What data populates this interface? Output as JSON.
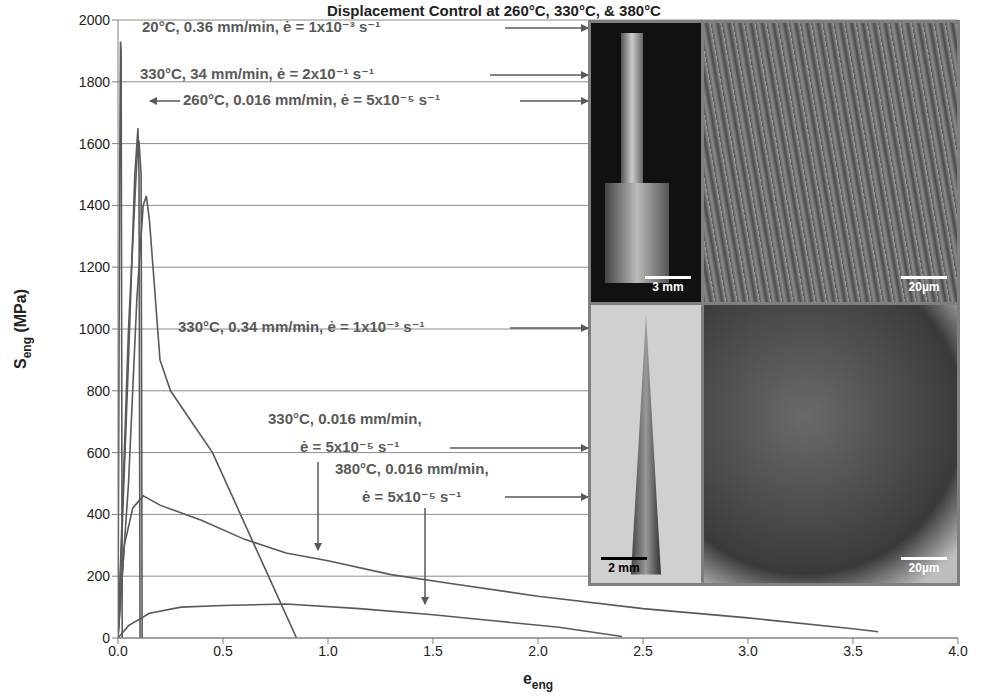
{
  "chart_data": {
    "type": "line",
    "title": "Displacement Control at 260°C, 330°C, & 380°C",
    "x_label": "eeng",
    "y_label": "Seng (MPa)",
    "xlim": [
      0,
      4
    ],
    "ylim": [
      0,
      2000
    ],
    "xticks": [
      {
        "value": 0,
        "label": "0.0"
      },
      {
        "value": 0.5,
        "label": "0.5"
      },
      {
        "value": 1,
        "label": "1.0"
      },
      {
        "value": 1.5,
        "label": "1.5"
      },
      {
        "value": 2,
        "label": "2.0"
      },
      {
        "value": 2.5,
        "label": "2.5"
      },
      {
        "value": 3,
        "label": "3.0"
      },
      {
        "value": 3.5,
        "label": "3.5"
      },
      {
        "value": 4,
        "label": "4.0"
      }
    ],
    "yticks": [
      0,
      200,
      400,
      600,
      800,
      1000,
      1200,
      1400,
      1600,
      1800,
      2000
    ],
    "grid": true,
    "series": [
      {
        "name": "20°C, 0.36 mm/min, ė = 1x10⁻³ s⁻¹",
        "color": "#595959",
        "x": [
          0,
          0.008,
          0.012,
          0.015,
          0.02
        ],
        "values": [
          0,
          1500,
          1930,
          1900,
          0
        ]
      },
      {
        "name": "330°C, 34 mm/min, ė = 2x10⁻¹ s⁻¹",
        "color": "#595959",
        "x": [
          0,
          0.05,
          0.08,
          0.095,
          0.1,
          0.105
        ],
        "values": [
          0,
          900,
          1500,
          1650,
          1500,
          0
        ]
      },
      {
        "name": "260°C, 0.016 mm/min, ė = 5x10⁻⁵ s⁻¹",
        "color": "#595959",
        "x": [
          0,
          0.05,
          0.09,
          0.1,
          0.11,
          0.115
        ],
        "values": [
          0,
          1000,
          1550,
          1610,
          1500,
          0
        ]
      },
      {
        "name": "330°C, 0.34 mm/min, ė = 1x10⁻³ s⁻¹",
        "color": "#595959",
        "x": [
          0,
          0.05,
          0.09,
          0.12,
          0.135,
          0.15,
          0.2,
          0.25,
          0.35,
          0.45,
          0.55,
          0.65,
          0.75,
          0.85
        ],
        "values": [
          0,
          500,
          1100,
          1400,
          1430,
          1350,
          900,
          800,
          700,
          600,
          450,
          300,
          150,
          0
        ]
      },
      {
        "name": "330°C, 0.016 mm/min, ė = 5x10⁻⁵ s⁻¹",
        "color": "#595959",
        "x": [
          0,
          0.03,
          0.07,
          0.12,
          0.2,
          0.4,
          0.6,
          0.8,
          1.0,
          1.3,
          1.6,
          2.0,
          2.5,
          3.0,
          3.5,
          3.62
        ],
        "values": [
          0,
          300,
          420,
          460,
          430,
          380,
          320,
          275,
          250,
          205,
          175,
          135,
          95,
          65,
          30,
          20
        ]
      },
      {
        "name": "380°C, 0.016 mm/min, ė = 5x10⁻⁵ s⁻¹",
        "color": "#595959",
        "x": [
          0,
          0.05,
          0.15,
          0.3,
          0.5,
          0.8,
          1.15,
          1.5,
          1.8,
          2.1,
          2.4
        ],
        "values": [
          0,
          40,
          80,
          100,
          105,
          110,
          95,
          75,
          55,
          35,
          5
        ]
      }
    ],
    "insets": [
      {
        "scale_bar": "3 mm"
      },
      {
        "scale_bar": "20µm"
      },
      {
        "scale_bar": "2 mm"
      },
      {
        "scale_bar": "20µm"
      }
    ]
  }
}
